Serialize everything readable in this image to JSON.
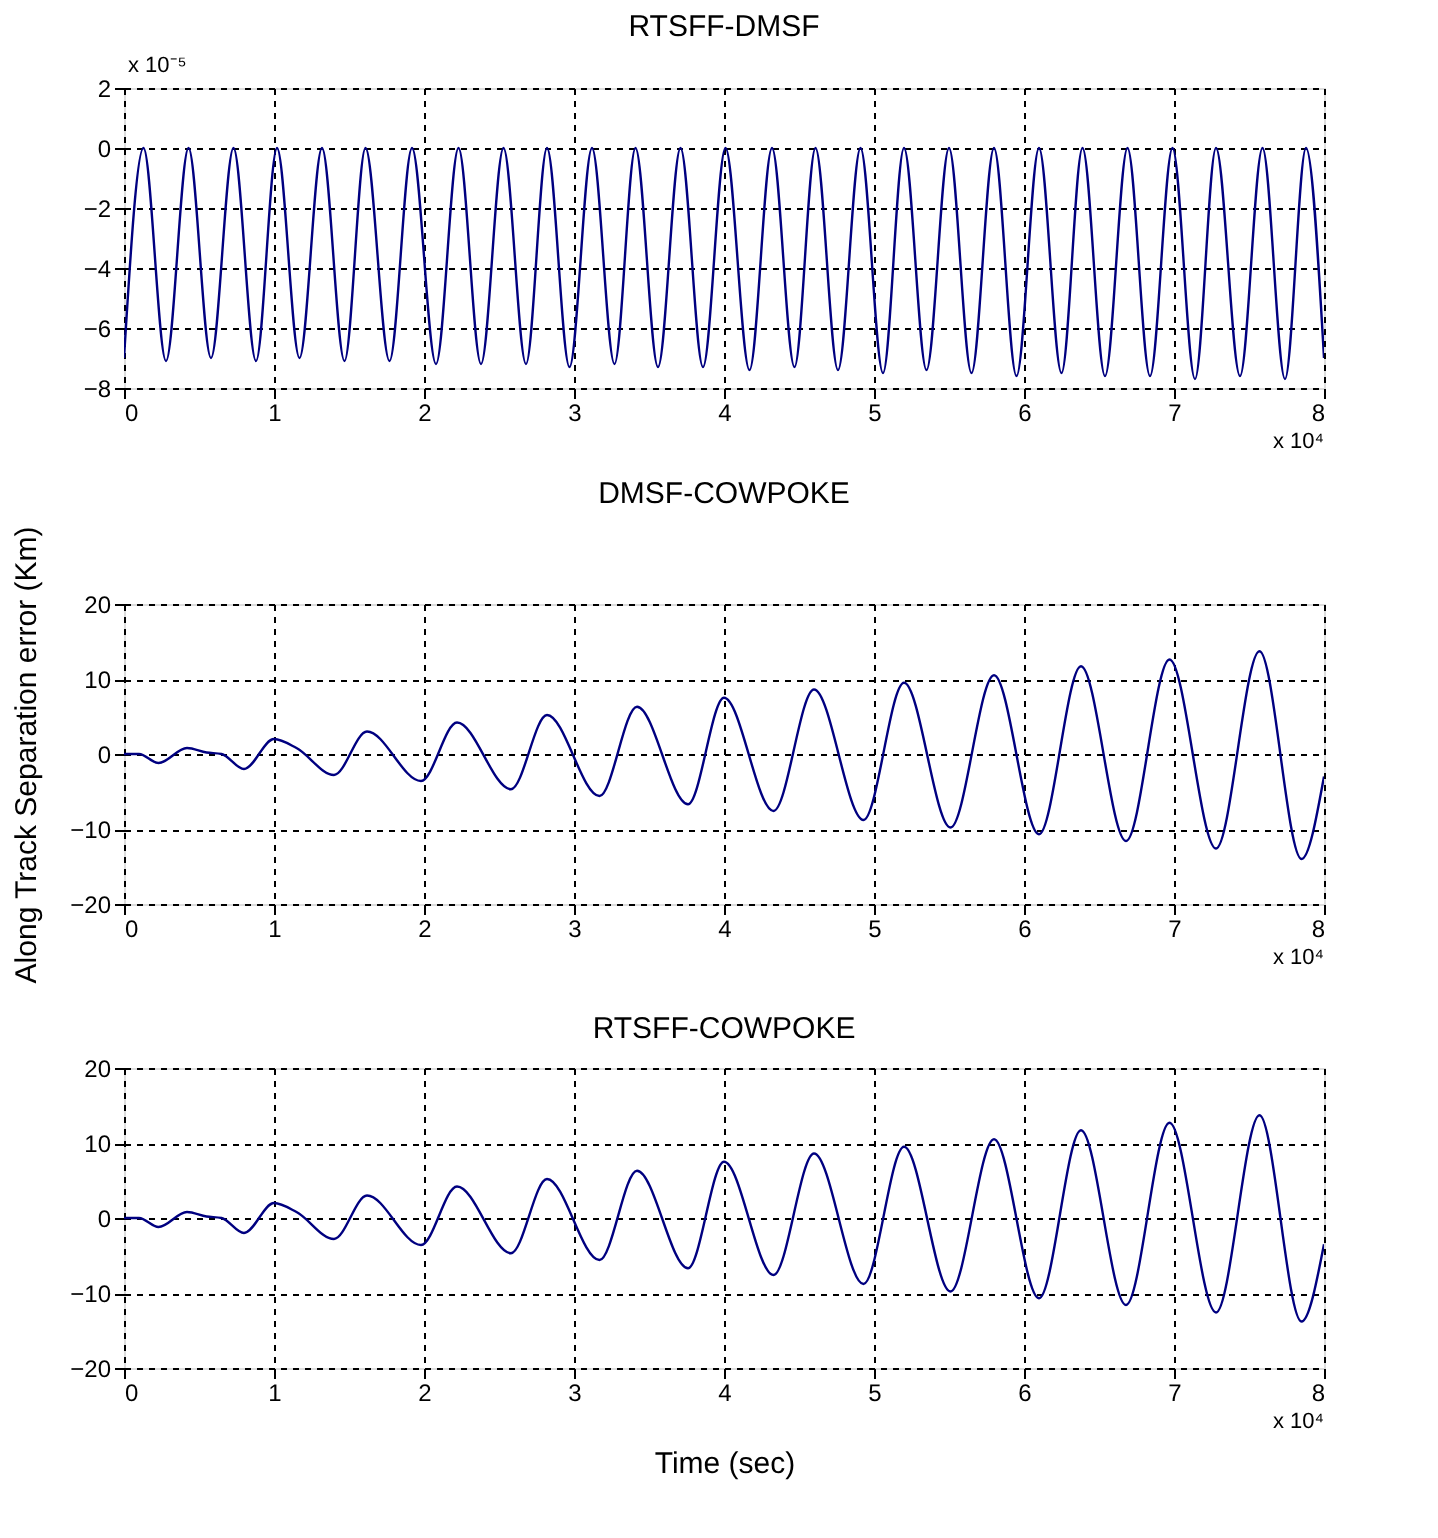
{
  "chart_data": [
    {
      "type": "line",
      "title": "RTSFF-DMSF",
      "annotations": [
        "x 10⁻⁵",
        "x 10⁴"
      ],
      "grid": true,
      "xlim": [
        0,
        8
      ],
      "xticks": [
        0,
        1,
        2,
        3,
        4,
        5,
        6,
        7,
        8
      ],
      "ylim": [
        -8,
        2
      ],
      "yticks": [
        -8,
        -6,
        -4,
        -2,
        0,
        2
      ],
      "x": [
        0,
        0.13,
        0.28,
        0.43,
        0.58,
        0.73,
        0.88,
        1.02,
        1.17,
        1.32,
        1.47,
        1.61,
        1.77,
        1.92,
        2.08,
        2.23,
        2.38,
        2.53,
        2.68,
        2.82,
        2.97,
        3.12,
        3.27,
        3.41,
        3.56,
        3.71,
        3.86,
        4.01,
        4.17,
        4.32,
        4.47,
        4.61,
        4.76,
        4.91,
        5.06,
        5.2,
        5.35,
        5.5,
        5.65,
        5.8,
        5.95,
        6.1,
        6.25,
        6.39,
        6.54,
        6.69,
        6.84,
        6.99,
        7.14,
        7.28,
        7.44,
        7.59,
        7.74,
        7.88,
        8.0
      ],
      "series": [
        {
          "color": "#000080",
          "values": [
            -7.0,
            0,
            -7.1,
            0,
            -7.0,
            0,
            -7.1,
            0,
            -7.0,
            0,
            -7.1,
            0,
            -7.1,
            0,
            -7.2,
            0,
            -7.2,
            0,
            -7.2,
            0,
            -7.3,
            0,
            -7.2,
            0,
            -7.3,
            0,
            -7.3,
            0,
            -7.4,
            0,
            -7.3,
            0,
            -7.4,
            0,
            -7.5,
            0,
            -7.4,
            0,
            -7.5,
            0,
            -7.6,
            0,
            -7.5,
            0,
            -7.6,
            0,
            -7.6,
            0,
            -7.7,
            0,
            -7.6,
            0,
            -7.7,
            0,
            -7.0
          ]
        }
      ]
    },
    {
      "type": "line",
      "title": "DMSF-COWPOKE",
      "ylabel": "Along Track Separation error  (Km)",
      "annotations": [
        "x 10⁴"
      ],
      "grid": true,
      "xlim": [
        0,
        8
      ],
      "xticks": [
        0,
        1,
        2,
        3,
        4,
        5,
        6,
        7,
        8
      ],
      "ylim": [
        -20,
        20
      ],
      "yticks": [
        -20,
        -10,
        0,
        10,
        20
      ],
      "x": [
        0,
        0.1,
        0.23,
        0.42,
        0.55,
        0.65,
        0.8,
        1.0,
        1.15,
        1.4,
        1.62,
        1.98,
        2.22,
        2.58,
        2.82,
        3.17,
        3.42,
        3.76,
        4.0,
        4.33,
        4.6,
        4.93,
        5.2,
        5.51,
        5.8,
        6.1,
        6.38,
        6.68,
        6.97,
        7.28,
        7.57,
        7.85,
        8.0
      ],
      "series": [
        {
          "color": "#000080",
          "values": [
            0,
            0,
            -1.2,
            0.8,
            0.2,
            0,
            -2,
            2,
            0.8,
            -2.8,
            3,
            -3.6,
            4.2,
            -4.7,
            5.2,
            -5.6,
            6.3,
            -6.7,
            7.5,
            -7.6,
            8.6,
            -8.8,
            9.5,
            -9.8,
            10.5,
            -10.7,
            11.7,
            -11.6,
            12.6,
            -12.6,
            13.7,
            -14,
            -3
          ]
        }
      ]
    },
    {
      "type": "line",
      "title": "RTSFF-COWPOKE",
      "xlabel": "Time  (sec)",
      "annotations": [
        "x 10⁴"
      ],
      "grid": true,
      "xlim": [
        0,
        8
      ],
      "xticks": [
        0,
        1,
        2,
        3,
        4,
        5,
        6,
        7,
        8
      ],
      "ylim": [
        -20,
        20
      ],
      "yticks": [
        -20,
        -10,
        0,
        10,
        20
      ],
      "x": [
        0,
        0.1,
        0.23,
        0.42,
        0.55,
        0.65,
        0.8,
        1.0,
        1.15,
        1.4,
        1.62,
        1.98,
        2.22,
        2.58,
        2.82,
        3.17,
        3.42,
        3.76,
        4.0,
        4.33,
        4.6,
        4.93,
        5.2,
        5.51,
        5.8,
        6.1,
        6.38,
        6.68,
        6.97,
        7.28,
        7.57,
        7.85,
        8.0
      ],
      "series": [
        {
          "color": "#000080",
          "values": [
            0,
            0,
            -1.2,
            0.8,
            0.2,
            0,
            -2,
            2,
            0.8,
            -2.8,
            3,
            -3.6,
            4.2,
            -4.7,
            5.2,
            -5.6,
            6.3,
            -6.7,
            7.5,
            -7.6,
            8.6,
            -8.8,
            9.5,
            -9.8,
            10.5,
            -10.7,
            11.7,
            -11.6,
            12.7,
            -12.6,
            13.7,
            -13.8,
            -3.5
          ]
        }
      ]
    }
  ]
}
